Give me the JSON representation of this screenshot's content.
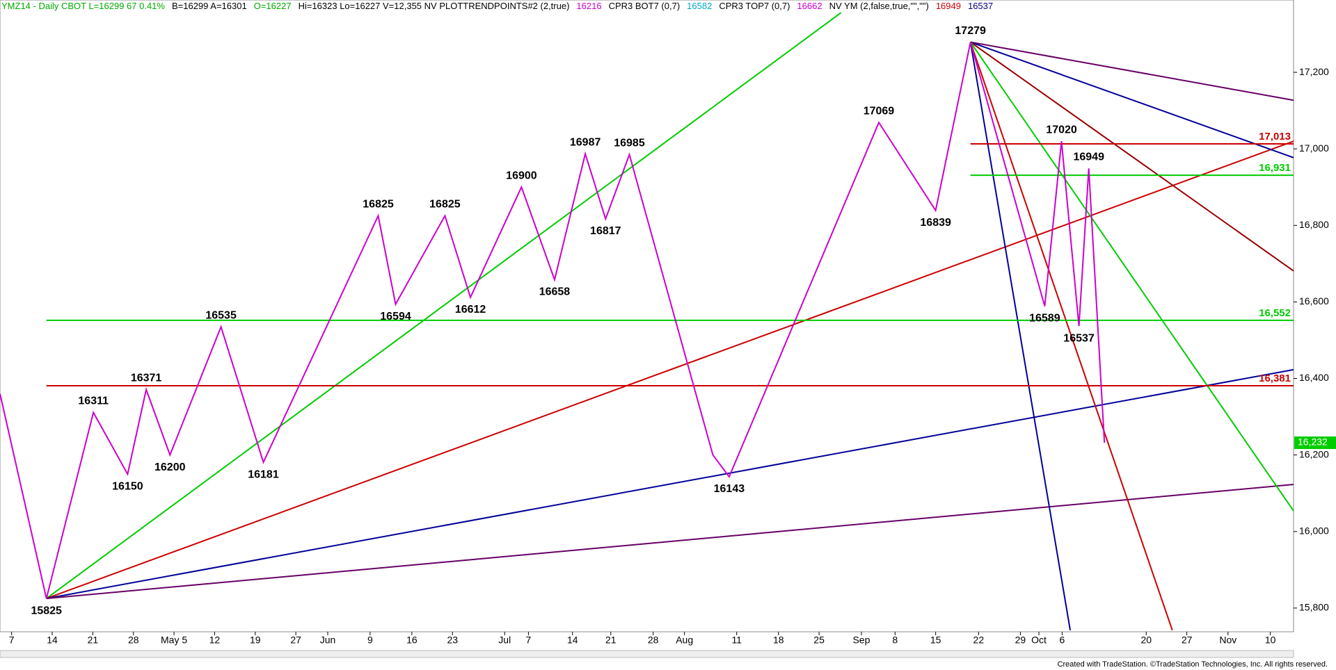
{
  "chart_data": {
    "type": "ohlc-study",
    "header": [
      {
        "text": "YMZ14 - Daily  CBOT  L=16299  67  0.41%",
        "color": "#00aa00"
      },
      {
        "text": "B=16299  A=16301",
        "color": "#000000"
      },
      {
        "text": "O=16227",
        "color": "#00aa00"
      },
      {
        "text": "Hi=16323  Lo=16227  V=12,355  NV  PLOTTRENDPOINTS#2 (2,true)",
        "color": "#000000"
      },
      {
        "text": "16216",
        "color": "#cc00cc"
      },
      {
        "text": "CPR3 BOT7 (0,7)",
        "color": "#000000"
      },
      {
        "text": "16582",
        "color": "#00aacc"
      },
      {
        "text": "CPR3 TOP7 (0,7)",
        "color": "#000000"
      },
      {
        "text": "16662",
        "color": "#cc00cc"
      },
      {
        "text": "NV YM (2,false,true,\"\",\"\")",
        "color": "#000000"
      },
      {
        "text": "16949",
        "color": "#cc0000"
      },
      {
        "text": "16537",
        "color": "#000080"
      }
    ],
    "footer": "Created with TradeStation. ©TradeStation Technologies, Inc. All rights reserved.",
    "xlim": [
      -2,
      221
    ],
    "ylim": [
      15738,
      17389
    ],
    "yticks": [
      {
        "value": 15800,
        "label": "15,800"
      },
      {
        "value": 16000,
        "label": "16,000"
      },
      {
        "value": 16200,
        "label": "16,200"
      },
      {
        "value": 16400,
        "label": "16,400"
      },
      {
        "value": 16600,
        "label": "16,600"
      },
      {
        "value": 16800,
        "label": "16,800"
      },
      {
        "value": 17000,
        "label": "17,000"
      },
      {
        "value": 17200,
        "label": "17,200"
      }
    ],
    "xticks": [
      {
        "value": 0,
        "label": "7"
      },
      {
        "value": 7,
        "label": "14"
      },
      {
        "value": 14,
        "label": "21"
      },
      {
        "value": 21,
        "label": "28"
      },
      {
        "value": 28,
        "label": "May 5"
      },
      {
        "value": 35,
        "label": "12"
      },
      {
        "value": 42,
        "label": "19"
      },
      {
        "value": 49,
        "label": "27"
      },
      {
        "value": 54.5,
        "label": "Jun"
      },
      {
        "value": 61.8,
        "label": "9"
      },
      {
        "value": 69,
        "label": "16"
      },
      {
        "value": 76,
        "label": "23"
      },
      {
        "value": 85,
        "label": "Jul"
      },
      {
        "value": 89.1,
        "label": "7"
      },
      {
        "value": 96.7,
        "label": "14"
      },
      {
        "value": 103.3,
        "label": "21"
      },
      {
        "value": 110.6,
        "label": "28"
      },
      {
        "value": 116,
        "label": "Aug"
      },
      {
        "value": 125,
        "label": "11"
      },
      {
        "value": 132.2,
        "label": "18"
      },
      {
        "value": 139.2,
        "label": "25"
      },
      {
        "value": 146.5,
        "label": "Sep"
      },
      {
        "value": 152.3,
        "label": "8"
      },
      {
        "value": 159.3,
        "label": "15"
      },
      {
        "value": 166.7,
        "label": "22"
      },
      {
        "value": 173.9,
        "label": "29"
      },
      {
        "value": 177.1,
        "label": "Oct"
      },
      {
        "value": 181.1,
        "label": "6"
      },
      {
        "value": 195.6,
        "label": "20"
      },
      {
        "value": 202.6,
        "label": "27"
      },
      {
        "value": 209.7,
        "label": "Nov"
      },
      {
        "value": 217,
        "label": "10"
      }
    ],
    "swing": {
      "color": "#cc00cc",
      "x": [
        -2,
        6,
        14.1,
        20,
        23.2,
        27.3,
        36.1,
        43.4,
        63.2,
        66.2,
        74.7,
        79.1,
        87.9,
        93.6,
        98.9,
        102.4,
        106.5,
        120.9,
        123.7,
        149.5,
        159.3,
        165.3,
        178.1,
        181,
        184,
        185.7,
        188.4
      ],
      "values": [
        16360,
        15825,
        16311,
        16150,
        16371,
        16200,
        16535,
        16181,
        16825,
        16594,
        16825,
        16612,
        16900,
        16658,
        16987,
        16817,
        16985,
        16200,
        16143,
        17069,
        16839,
        17279,
        16589,
        17020,
        16537,
        16949,
        16232
      ],
      "value_labels": [
        null,
        "15825",
        "16311",
        "16150",
        "16371",
        "16200",
        "16535",
        "16181",
        "16825",
        "16594",
        "16825",
        "16612",
        "16900",
        "16658",
        "16987",
        "16817",
        "16985",
        null,
        "16143",
        "17069",
        "16839",
        "17279",
        "16589",
        "17020",
        "16537",
        "16949",
        null
      ]
    },
    "levels": [
      {
        "value": 17013,
        "label": "17,013",
        "from": 165.3,
        "color": "#cc0000"
      },
      {
        "value": 16931,
        "label": "16,931",
        "from": 165.3,
        "color": "#00cc00"
      },
      {
        "value": 16552,
        "label": "16,552",
        "from": 6,
        "color": "#00cc00"
      },
      {
        "value": 16381,
        "label": "16,381",
        "from": 6,
        "color": "#cc0000"
      }
    ],
    "last_price": {
      "value": 16232,
      "label": "16,232",
      "color": "#00cc00"
    },
    "trendlines": [
      {
        "x": [
          6,
          143
        ],
        "values": [
          15825,
          17356
        ],
        "color": "#00cc00"
      },
      {
        "x": [
          6,
          221
        ],
        "values": [
          15825,
          17020
        ],
        "color": "#cc0000"
      },
      {
        "x": [
          6,
          221
        ],
        "values": [
          15825,
          16423
        ],
        "color": "#000099"
      },
      {
        "x": [
          6,
          221
        ],
        "values": [
          15825,
          16123
        ],
        "color": "#660066"
      },
      {
        "x": [
          165.3,
          221
        ],
        "values": [
          17279,
          17127
        ],
        "color": "#660066"
      },
      {
        "x": [
          165.3,
          221
        ],
        "values": [
          17279,
          16977
        ],
        "color": "#000099"
      },
      {
        "x": [
          165.3,
          221
        ],
        "values": [
          17279,
          16681
        ],
        "color": "#990000"
      },
      {
        "x": [
          165.3,
          221
        ],
        "values": [
          17279,
          16054
        ],
        "color": "#00cc00"
      },
      {
        "x": [
          165.3,
          200.1
        ],
        "values": [
          17279,
          15742
        ],
        "color": "#cc0000"
      },
      {
        "x": [
          165.3,
          182.5
        ],
        "values": [
          17279,
          15742
        ],
        "color": "#000099"
      }
    ]
  }
}
